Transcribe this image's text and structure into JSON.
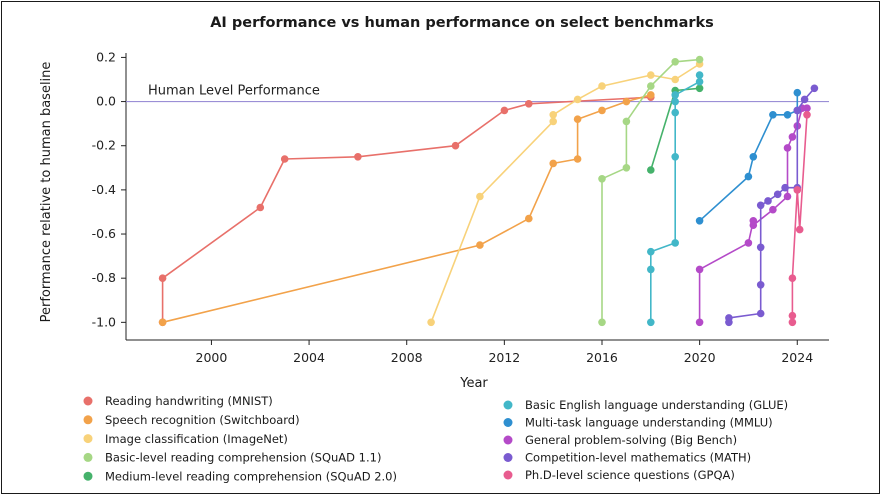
{
  "chart_data": {
    "type": "line",
    "title": "AI performance vs human performance on select benchmarks",
    "xlabel": "Year",
    "ylabel": "Performance relative to human baseline",
    "xlim": [
      1996.5,
      2025.3
    ],
    "ylim": [
      -1.08,
      0.22
    ],
    "xticks": [
      2000,
      2004,
      2008,
      2012,
      2016,
      2020,
      2024
    ],
    "yticks": [
      0.2,
      0.0,
      -0.2,
      -0.4,
      -0.6,
      -0.8,
      -1.0
    ],
    "ytick_labels": [
      "0.2",
      "0.0",
      "-0.2",
      "-0.4",
      "-0.6",
      "-0.8",
      "-1.0"
    ],
    "grid": false,
    "legend_position": "bottom",
    "reference_line": {
      "y": 0.0,
      "label": "Human Level Performance",
      "color": "#9b8fd6"
    },
    "series": [
      {
        "name": "Reading handwriting (MNIST)",
        "color": "#e8706a",
        "points": [
          [
            1998,
            -1.0
          ],
          [
            1998,
            -0.8
          ],
          [
            2002,
            -0.48
          ],
          [
            2003,
            -0.26
          ],
          [
            2006,
            -0.25
          ],
          [
            2010,
            -0.2
          ],
          [
            2012,
            -0.04
          ],
          [
            2013,
            -0.01
          ],
          [
            2018,
            0.02
          ]
        ]
      },
      {
        "name": "Speech recognition (Switchboard)",
        "color": "#f2a24a",
        "points": [
          [
            1998,
            -1.0
          ],
          [
            2011,
            -0.65
          ],
          [
            2013,
            -0.53
          ],
          [
            2014,
            -0.28
          ],
          [
            2015,
            -0.26
          ],
          [
            2015,
            -0.08
          ],
          [
            2016,
            -0.04
          ],
          [
            2017,
            0.0
          ],
          [
            2018,
            0.03
          ]
        ]
      },
      {
        "name": "Image classification (ImageNet)",
        "color": "#f8d27a",
        "points": [
          [
            2009,
            -1.0
          ],
          [
            2011,
            -0.43
          ],
          [
            2014,
            -0.09
          ],
          [
            2014,
            -0.06
          ],
          [
            2015,
            0.01
          ],
          [
            2016,
            0.07
          ],
          [
            2018,
            0.12
          ],
          [
            2019,
            0.1
          ],
          [
            2020,
            0.17
          ]
        ]
      },
      {
        "name": "Basic-level reading comprehension (SQuAD 1.1)",
        "color": "#a6d785",
        "points": [
          [
            2016,
            -1.0
          ],
          [
            2016,
            -0.35
          ],
          [
            2017,
            -0.3
          ],
          [
            2017,
            -0.09
          ],
          [
            2018,
            0.07
          ],
          [
            2019,
            0.18
          ],
          [
            2020,
            0.19
          ]
        ]
      },
      {
        "name": "Medium-level reading comprehension (SQuAD 2.0)",
        "color": "#45b26b",
        "points": [
          [
            2018,
            -0.31
          ],
          [
            2019,
            0.05
          ],
          [
            2020,
            0.06
          ]
        ]
      },
      {
        "name": "Basic English language understanding (GLUE)",
        "color": "#42b7c8",
        "points": [
          [
            2018,
            -1.0
          ],
          [
            2018,
            -0.76
          ],
          [
            2018,
            -0.68
          ],
          [
            2019,
            -0.64
          ],
          [
            2019,
            -0.25
          ],
          [
            2019,
            -0.05
          ],
          [
            2019,
            0.0
          ],
          [
            2019,
            0.03
          ],
          [
            2020,
            0.09
          ],
          [
            2020,
            0.12
          ]
        ]
      },
      {
        "name": "Multi-task language understanding (MMLU)",
        "color": "#2e8fd0",
        "points": [
          [
            2020,
            -0.54
          ],
          [
            2022,
            -0.34
          ],
          [
            2022.2,
            -0.25
          ],
          [
            2023,
            -0.06
          ],
          [
            2023.6,
            -0.06
          ],
          [
            2024,
            -0.04
          ],
          [
            2024,
            0.04
          ]
        ]
      },
      {
        "name": "General problem-solving (Big Bench)",
        "color": "#b44ac8",
        "points": [
          [
            2020,
            -1.0
          ],
          [
            2020,
            -0.76
          ],
          [
            2022,
            -0.64
          ],
          [
            2022.2,
            -0.54
          ],
          [
            2022.2,
            -0.56
          ],
          [
            2023,
            -0.49
          ],
          [
            2023.6,
            -0.43
          ],
          [
            2023.6,
            -0.21
          ],
          [
            2023.8,
            -0.16
          ],
          [
            2024,
            -0.11
          ],
          [
            2024.2,
            -0.03
          ],
          [
            2024.4,
            -0.03
          ]
        ]
      },
      {
        "name": "Competition-level mathematics (MATH)",
        "color": "#7a5bd0",
        "points": [
          [
            2021.2,
            -1.0
          ],
          [
            2021.2,
            -0.98
          ],
          [
            2022.5,
            -0.96
          ],
          [
            2022.5,
            -0.83
          ],
          [
            2022.5,
            -0.66
          ],
          [
            2022.5,
            -0.47
          ],
          [
            2022.8,
            -0.45
          ],
          [
            2023.2,
            -0.42
          ],
          [
            2023.5,
            -0.39
          ],
          [
            2024,
            -0.39
          ],
          [
            2024,
            -0.04
          ],
          [
            2024.3,
            0.01
          ],
          [
            2024.7,
            0.06
          ]
        ]
      },
      {
        "name": "Ph.D-level science questions (GPQA)",
        "color": "#e85c8f",
        "points": [
          [
            2023.8,
            -1.0
          ],
          [
            2023.8,
            -0.97
          ],
          [
            2023.8,
            -0.8
          ],
          [
            2024,
            -0.4
          ],
          [
            2024.1,
            -0.58
          ],
          [
            2024.4,
            -0.06
          ]
        ]
      }
    ]
  }
}
